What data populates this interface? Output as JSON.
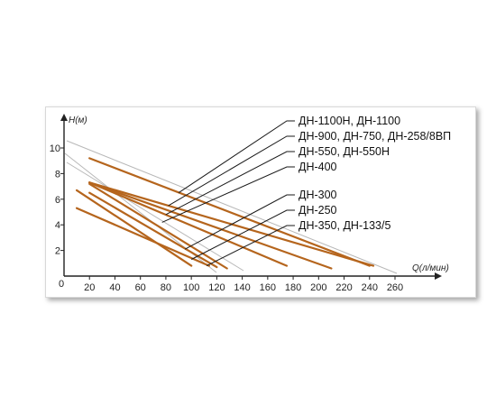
{
  "chart_data": {
    "type": "line",
    "xlabel": "Q(л/мин)",
    "ylabel": "H(м)",
    "xlim": [
      0,
      260
    ],
    "ylim": [
      0,
      10
    ],
    "x_ticks": [
      "0",
      "20",
      "40",
      "60",
      "80",
      "100",
      "120",
      "140",
      "160",
      "180",
      "200",
      "220",
      "240",
      "260"
    ],
    "y_ticks": [
      "2",
      "4",
      "6",
      "8",
      "10"
    ],
    "grid": false,
    "colors": {
      "curve": "#b5651d",
      "diagonal": "#b8b8b8",
      "leader": "#1a1a1a",
      "axis": "#222222"
    },
    "series": [
      {
        "name": "ДН-1100Н, ДН-1100",
        "x": [
          20,
          240
        ],
        "y": [
          9.2,
          0.8
        ]
      },
      {
        "name": "ДН-900, ДН-750, ДН-258/8ВП",
        "x": [
          20,
          243
        ],
        "y": [
          7.3,
          0.8
        ]
      },
      {
        "name": "ДН-550, ДН-550Н",
        "x": [
          20,
          210
        ],
        "y": [
          7.3,
          0.6
        ]
      },
      {
        "name": "ДН-400",
        "x": [
          20,
          175
        ],
        "y": [
          7.3,
          0.8
        ]
      },
      {
        "name": "ДН-300",
        "x": [
          20,
          128
        ],
        "y": [
          7.2,
          0.6
        ]
      },
      {
        "name": "ДН-250",
        "x": [
          20,
          120
        ],
        "y": [
          6.5,
          0.7
        ]
      },
      {
        "name": "ДН-350, ДН-133/5",
        "x": [
          10,
          114
        ],
        "y": [
          5.3,
          0.8
        ]
      },
      {
        "name": "",
        "x": [
          10,
          100
        ],
        "y": [
          6.7,
          0.8
        ]
      }
    ],
    "legend": [
      "ДН-1100Н, ДН-1100",
      "ДН-900, ДН-750, ДН-258/8ВП",
      "ДН-550, ДН-550Н",
      "ДН-400",
      "ДН-300",
      "ДН-250",
      "ДН-350, ДН-133/5"
    ]
  }
}
